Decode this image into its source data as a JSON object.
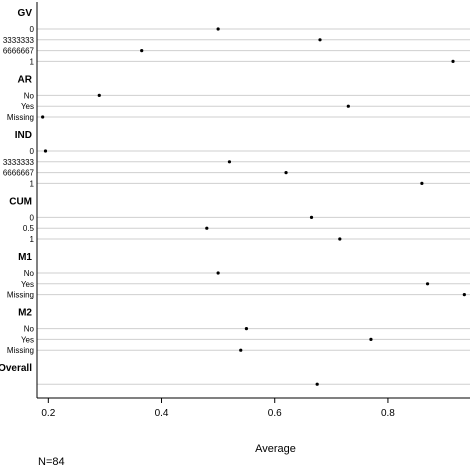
{
  "chart_data": {
    "type": "dot",
    "x_label": "Average",
    "x_range": [
      0.18,
      0.945
    ],
    "x_ticks": [
      0.2,
      0.4,
      0.6,
      0.8
    ],
    "x_tick_labels": [
      "0.2",
      "0.4",
      "0.6",
      "0.8"
    ],
    "grid": "horizontal",
    "groups": [
      {
        "label": "GV",
        "rows": [
          {
            "label": "0",
            "value": 0.5
          },
          {
            "label": "3333333",
            "value": 0.68
          },
          {
            "label": "6666667",
            "value": 0.365
          },
          {
            "label": "1",
            "value": 0.915
          }
        ]
      },
      {
        "label": "AR",
        "rows": [
          {
            "label": "No",
            "value": 0.29
          },
          {
            "label": "Yes",
            "value": 0.73
          },
          {
            "label": "Missing",
            "value": 0.19
          }
        ]
      },
      {
        "label": "IND",
        "rows": [
          {
            "label": "0",
            "value": 0.195
          },
          {
            "label": "3333333",
            "value": 0.52
          },
          {
            "label": "6666667",
            "value": 0.62
          },
          {
            "label": "1",
            "value": 0.86
          }
        ]
      },
      {
        "label": "CUM",
        "rows": [
          {
            "label": "0",
            "value": 0.665
          },
          {
            "label": "0.5",
            "value": 0.48
          },
          {
            "label": "1",
            "value": 0.715
          }
        ]
      },
      {
        "label": "M1",
        "rows": [
          {
            "label": "No",
            "value": 0.5
          },
          {
            "label": "Yes",
            "value": 0.87
          },
          {
            "label": "Missing",
            "value": 0.935
          }
        ]
      },
      {
        "label": "M2",
        "rows": [
          {
            "label": "No",
            "value": 0.55
          },
          {
            "label": "Yes",
            "value": 0.77
          },
          {
            "label": "Missing",
            "value": 0.54
          }
        ]
      },
      {
        "label": "Overall",
        "rows": [
          {
            "label": "",
            "value": 0.675
          }
        ]
      }
    ]
  },
  "note": "N=84"
}
